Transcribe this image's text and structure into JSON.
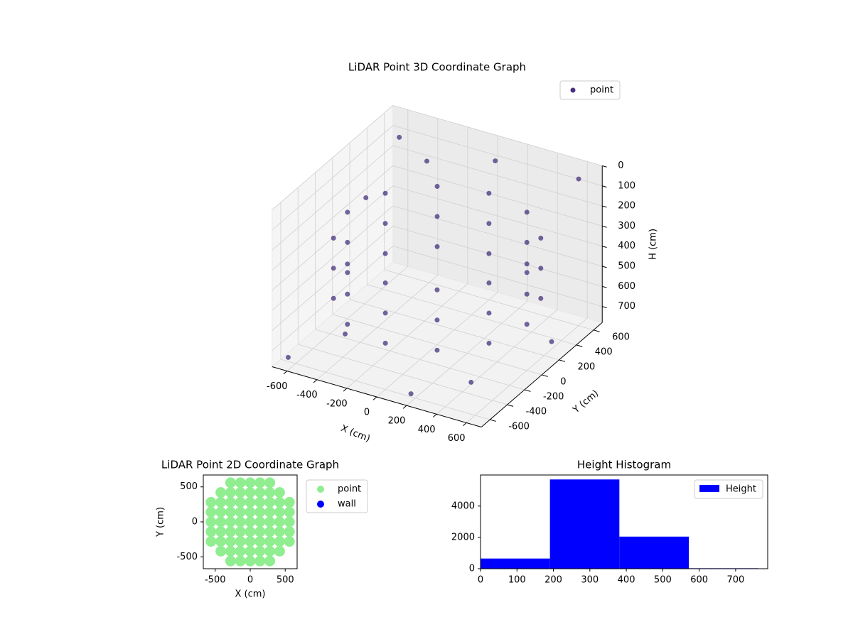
{
  "chart_data": [
    {
      "type": "scatter3d",
      "title": "LiDAR Point 3D Coordinate Graph",
      "xlabel": "X (cm)",
      "ylabel": "Y (cm)",
      "zlabel": "H (cm)",
      "series": [
        {
          "name": "point",
          "color": "#46327e",
          "x": [
            600,
            520,
            300,
            0,
            -300,
            -520,
            -600,
            -520,
            -300,
            0,
            300,
            520,
            600,
            520,
            300,
            0,
            -300,
            -520,
            -600,
            -520,
            -300,
            0,
            300,
            520,
            600,
            520,
            300,
            0,
            -300,
            -520,
            -600,
            -520,
            -300,
            0,
            300,
            520,
            -600,
            600,
            -650,
            200,
            -300,
            400,
            650,
            -500,
            100,
            -650
          ],
          "y": [
            0,
            300,
            520,
            600,
            520,
            300,
            0,
            -300,
            -520,
            -600,
            -520,
            -300,
            0,
            300,
            520,
            600,
            520,
            300,
            0,
            -300,
            -520,
            -600,
            -520,
            -300,
            0,
            300,
            520,
            600,
            520,
            300,
            0,
            -300,
            -520,
            -600,
            -520,
            -300,
            600,
            600,
            -600,
            -650,
            400,
            -300,
            200,
            -200,
            500,
            300
          ],
          "z": [
            250,
            250,
            250,
            250,
            250,
            250,
            250,
            250,
            250,
            250,
            250,
            250,
            400,
            400,
            400,
            400,
            400,
            400,
            400,
            400,
            400,
            400,
            400,
            400,
            550,
            550,
            550,
            550,
            550,
            550,
            550,
            550,
            550,
            550,
            550,
            550,
            100,
            50,
            760,
            740,
            80,
            770,
            700,
            760,
            30,
            300
          ]
        }
      ],
      "xlim": [
        -700,
        700
      ],
      "ylim": [
        -700,
        700
      ],
      "zlim": [
        0,
        780
      ],
      "z_inverted": true,
      "xticks": [
        -600,
        -400,
        -200,
        0,
        200,
        400,
        600
      ],
      "yticks": [
        -600,
        -400,
        -200,
        0,
        200,
        400,
        600
      ],
      "zticks": [
        0,
        100,
        200,
        300,
        400,
        500,
        600,
        700
      ],
      "grid": true,
      "legend": "upper right"
    },
    {
      "type": "scatter",
      "title": "LiDAR Point 2D Coordinate Graph",
      "xlabel": "X (cm)",
      "ylabel": "Y (cm)",
      "series": [
        {
          "name": "point",
          "color": "#90ee90",
          "x": [
            -560,
            -560,
            -560,
            -560,
            -560,
            -420,
            -420,
            -420,
            -420,
            -420,
            -420,
            -420,
            -280,
            -280,
            -280,
            -280,
            -280,
            -280,
            -280,
            -280,
            -280,
            -140,
            -140,
            -140,
            -140,
            -140,
            -140,
            -140,
            -140,
            -140,
            0,
            0,
            0,
            0,
            0,
            0,
            0,
            0,
            0,
            140,
            140,
            140,
            140,
            140,
            140,
            140,
            140,
            140,
            280,
            280,
            280,
            280,
            280,
            280,
            280,
            280,
            280,
            420,
            420,
            420,
            420,
            420,
            420,
            420,
            560,
            560,
            560,
            560,
            560
          ],
          "y": [
            -280,
            -140,
            0,
            140,
            280,
            -420,
            -280,
            -140,
            0,
            140,
            280,
            420,
            -560,
            -420,
            -280,
            -140,
            0,
            140,
            280,
            420,
            560,
            -560,
            -420,
            -280,
            -140,
            0,
            140,
            280,
            420,
            560,
            -560,
            -420,
            -280,
            -140,
            0,
            140,
            280,
            420,
            560,
            -560,
            -420,
            -280,
            -140,
            0,
            140,
            280,
            420,
            560,
            -560,
            -420,
            -280,
            -140,
            0,
            140,
            280,
            420,
            560,
            -420,
            -280,
            -140,
            0,
            140,
            280,
            420,
            -280,
            -140,
            0,
            140,
            280
          ]
        },
        {
          "name": "wall",
          "color": "#0000ff",
          "x": [],
          "y": []
        }
      ],
      "xlim": [
        -670,
        670
      ],
      "ylim": [
        -670,
        670
      ],
      "xticks": [
        -500,
        0,
        500
      ],
      "yticks": [
        -500,
        0,
        500
      ],
      "legend": "outside right"
    },
    {
      "type": "histogram",
      "title": "Height Histogram",
      "bins": [
        0,
        190.5,
        381,
        571.5,
        762
      ],
      "series": [
        {
          "name": "Height",
          "color": "#0000ff",
          "values": [
            650,
            5700,
            2050,
            30
          ]
        }
      ],
      "xlim": [
        0,
        788
      ],
      "ylim": [
        0,
        5985
      ],
      "xticks": [
        0,
        100,
        200,
        300,
        400,
        500,
        600,
        700
      ],
      "yticks": [
        0,
        2000,
        4000
      ],
      "legend": "upper right"
    }
  ]
}
